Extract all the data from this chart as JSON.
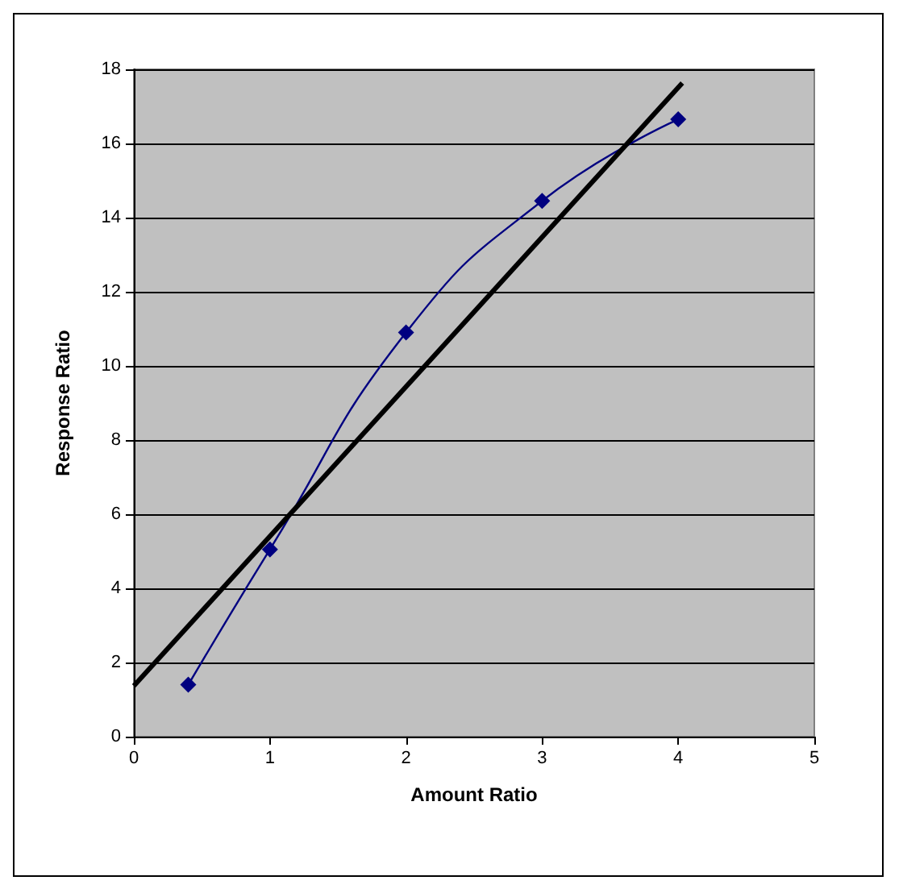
{
  "chart_data": {
    "type": "line",
    "xlabel": "Amount Ratio",
    "ylabel": "Response Ratio",
    "xlim": [
      0,
      5
    ],
    "xticks": [
      0,
      1,
      2,
      3,
      4,
      5
    ],
    "ylim": [
      0,
      18
    ],
    "yticks": [
      0,
      2,
      4,
      6,
      8,
      10,
      12,
      14,
      16,
      18
    ],
    "grid": "y",
    "marker": "diamond",
    "series": [
      {
        "color": "#000080",
        "x": [
          0.4,
          1,
          2,
          3,
          4
        ],
        "values": [
          1.4,
          5.05,
          10.9,
          14.45,
          16.65
        ]
      },
      {
        "color": "#000000",
        "marker": "none",
        "x": [
          0,
          4.03
        ],
        "values": [
          1.37,
          17.63
        ]
      }
    ]
  }
}
